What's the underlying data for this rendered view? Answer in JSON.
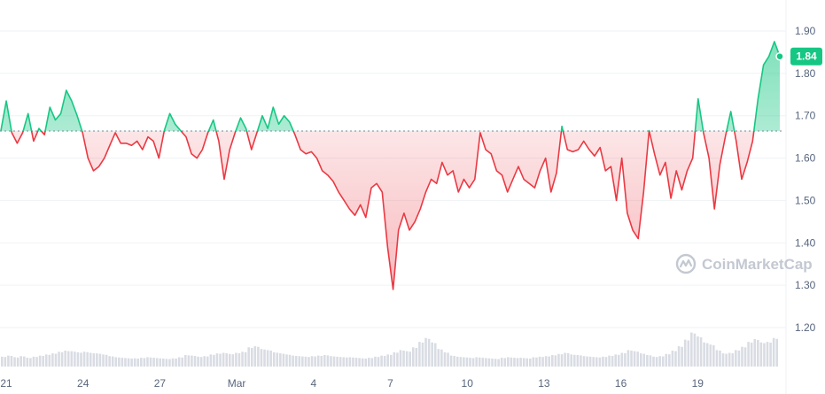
{
  "chart_data": {
    "type": "line",
    "title": "",
    "xlabel": "",
    "ylabel": "",
    "x_ticks": [
      "21",
      "24",
      "27",
      "Mar",
      "4",
      "7",
      "10",
      "13",
      "16",
      "19"
    ],
    "y_ticks": [
      "1.90",
      "1.80",
      "1.70",
      "1.60",
      "1.50",
      "1.40",
      "1.30",
      "1.20"
    ],
    "ylim": [
      1.1,
      1.95
    ],
    "reference_price": 1.664,
    "current_price_label": "1.84",
    "current_price": 1.84,
    "colors": {
      "up": "#16c784",
      "down": "#ea3943",
      "grid": "#eff2f5",
      "volume": "#d9dce3",
      "reference": "#7f8696"
    },
    "watermark": "CoinMarketCap",
    "series": [
      {
        "values": [
          1.665,
          1.735,
          1.66,
          1.635,
          1.66,
          1.705,
          1.64,
          1.67,
          1.655,
          1.72,
          1.69,
          1.705,
          1.76,
          1.735,
          1.7,
          1.66,
          1.6,
          1.57,
          1.58,
          1.6,
          1.63,
          1.66,
          1.635,
          1.635,
          1.63,
          1.64,
          1.62,
          1.65,
          1.64,
          1.6,
          1.665,
          1.705,
          1.68,
          1.665,
          1.65,
          1.61,
          1.6,
          1.62,
          1.66,
          1.69,
          1.64,
          1.55,
          1.62,
          1.66,
          1.695,
          1.67,
          1.62,
          1.66,
          1.7,
          1.67,
          1.72,
          1.68,
          1.7,
          1.685,
          1.655,
          1.62,
          1.61,
          1.615,
          1.6,
          1.57,
          1.56,
          1.545,
          1.52,
          1.5,
          1.48,
          1.465,
          1.49,
          1.46,
          1.53,
          1.54,
          1.52,
          1.39,
          1.29,
          1.43,
          1.47,
          1.43,
          1.45,
          1.48,
          1.52,
          1.55,
          1.54,
          1.59,
          1.56,
          1.57,
          1.52,
          1.55,
          1.53,
          1.55,
          1.66,
          1.62,
          1.61,
          1.57,
          1.56,
          1.52,
          1.55,
          1.58,
          1.55,
          1.54,
          1.53,
          1.57,
          1.6,
          1.52,
          1.565,
          1.675,
          1.62,
          1.615,
          1.62,
          1.64,
          1.62,
          1.605,
          1.625,
          1.57,
          1.58,
          1.5,
          1.6,
          1.47,
          1.43,
          1.41,
          1.52,
          1.665,
          1.61,
          1.56,
          1.59,
          1.505,
          1.57,
          1.525,
          1.57,
          1.6,
          1.74,
          1.66,
          1.6,
          1.48,
          1.585,
          1.65,
          1.71,
          1.64,
          1.55,
          1.59,
          1.64,
          1.74,
          1.82,
          1.84,
          1.875,
          1.84
        ]
      }
    ],
    "volume": [
      0.18,
      0.2,
      0.17,
      0.19,
      0.16,
      0.18,
      0.2,
      0.22,
      0.24,
      0.27,
      0.29,
      0.28,
      0.26,
      0.27,
      0.25,
      0.24,
      0.22,
      0.19,
      0.17,
      0.16,
      0.15,
      0.15,
      0.16,
      0.17,
      0.16,
      0.15,
      0.14,
      0.15,
      0.17,
      0.21,
      0.2,
      0.18,
      0.19,
      0.22,
      0.24,
      0.25,
      0.23,
      0.25,
      0.27,
      0.35,
      0.37,
      0.32,
      0.3,
      0.26,
      0.24,
      0.22,
      0.2,
      0.19,
      0.18,
      0.19,
      0.2,
      0.21,
      0.19,
      0.18,
      0.17,
      0.17,
      0.16,
      0.15,
      0.16,
      0.18,
      0.2,
      0.22,
      0.26,
      0.3,
      0.28,
      0.35,
      0.45,
      0.52,
      0.44,
      0.32,
      0.26,
      0.2,
      0.18,
      0.17,
      0.16,
      0.17,
      0.16,
      0.15,
      0.14,
      0.16,
      0.17,
      0.16,
      0.16,
      0.15,
      0.17,
      0.18,
      0.19,
      0.21,
      0.23,
      0.25,
      0.22,
      0.21,
      0.19,
      0.18,
      0.17,
      0.18,
      0.2,
      0.22,
      0.25,
      0.3,
      0.28,
      0.24,
      0.21,
      0.18,
      0.19,
      0.23,
      0.29,
      0.37,
      0.49,
      0.62,
      0.55,
      0.44,
      0.4,
      0.3,
      0.24,
      0.25,
      0.3,
      0.36,
      0.45,
      0.5,
      0.44,
      0.45,
      0.52
    ]
  }
}
